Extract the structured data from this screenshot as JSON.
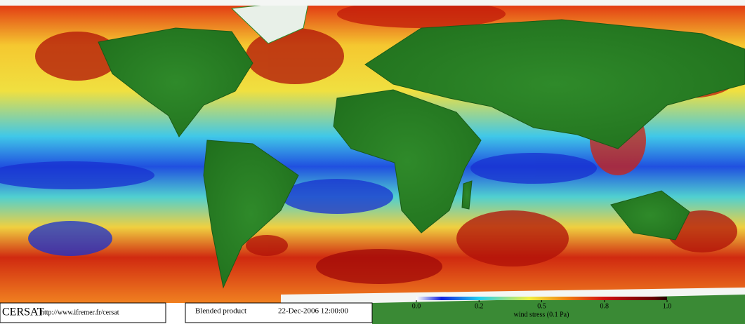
{
  "footer": {
    "logo": "CERSAT",
    "url": "http://www.ifremer.fr/cersat",
    "product": "Blended product",
    "datetime": "22-Dec-2006 12:00:00"
  },
  "colorbar": {
    "label": "wind stress (0.1 Pa)",
    "ticks": [
      {
        "value": 0,
        "label": "0.0"
      },
      0.2,
      0.5,
      0.8,
      {
        "value": 1,
        "label": "1.0"
      }
    ]
  }
}
